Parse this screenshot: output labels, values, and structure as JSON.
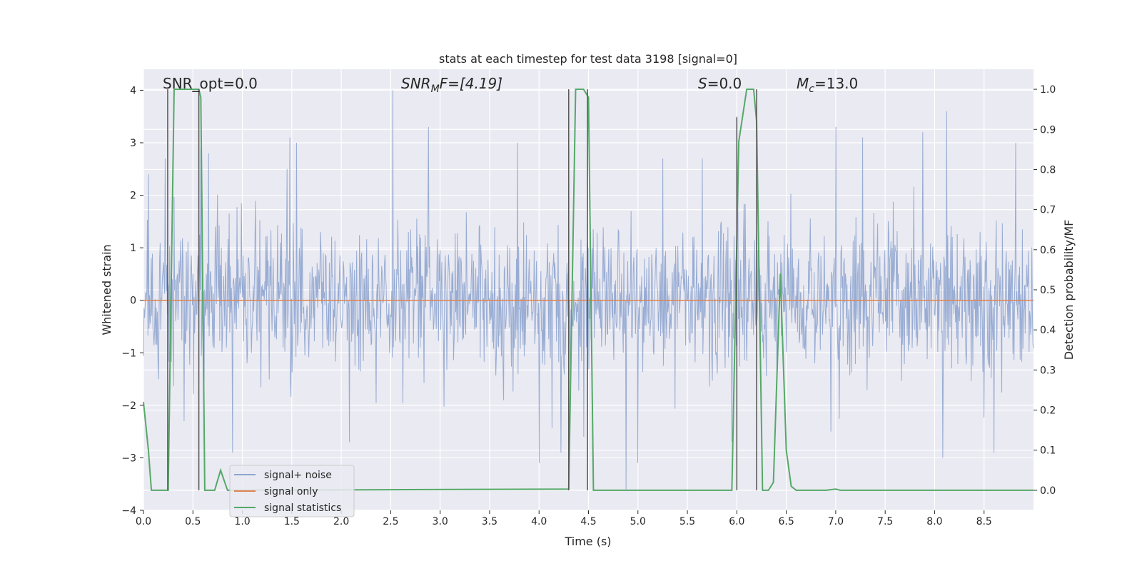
{
  "chart_data": {
    "type": "line",
    "title": "stats at each timestep for test data 3198 [signal=0]",
    "xlabel": "Time (s)",
    "ylabel": "Whitened strain",
    "y2label": "Detection probability/MF",
    "xlim": [
      0,
      9.0
    ],
    "ylim": [
      -4,
      4.4
    ],
    "y2lim": [
      -0.05,
      1.05
    ],
    "xticks": [
      "0.0",
      "0.5",
      "1.0",
      "1.5",
      "2.0",
      "2.5",
      "3.0",
      "3.5",
      "4.0",
      "4.5",
      "5.0",
      "5.5",
      "6.0",
      "6.5",
      "7.0",
      "7.5",
      "8.0",
      "8.5"
    ],
    "yticks": [
      "4",
      "3",
      "2",
      "1",
      "0",
      "−1",
      "−2",
      "−3",
      "−4"
    ],
    "y2ticks": [
      "1.0",
      "0.9",
      "0.8",
      "0.7",
      "0.6",
      "0.5",
      "0.4",
      "0.3",
      "0.2",
      "0.1",
      "0.0"
    ],
    "grid": true,
    "legend_position": "lower-left",
    "annotations": {
      "snr_opt": "SNR_opt=0.0",
      "snr_mf_main": "SNR",
      "snr_mf_sub": "M",
      "snr_mf_rest": "F=[4.19]",
      "s_main": "S",
      "s_rest": "=0.0",
      "mc_main": "M",
      "mc_sub": "c",
      "mc_rest": "=13.0"
    },
    "series": [
      {
        "name": "signal+ noise",
        "color": "#8fa5cf",
        "kind": "noise",
        "sigma": 0.72,
        "peaks": [
          {
            "x": 0.05,
            "y": 2.4
          },
          {
            "x": 0.22,
            "y": 2.7
          },
          {
            "x": 0.58,
            "y": 2.9
          },
          {
            "x": 0.66,
            "y": 2.8
          },
          {
            "x": 1.45,
            "y": 2.5
          },
          {
            "x": 1.48,
            "y": 3.1
          },
          {
            "x": 1.55,
            "y": 3.0
          },
          {
            "x": 2.52,
            "y": 4.0
          },
          {
            "x": 2.88,
            "y": 3.3
          },
          {
            "x": 3.78,
            "y": 3.0
          },
          {
            "x": 4.22,
            "y": 3.4
          },
          {
            "x": 4.45,
            "y": 2.8
          },
          {
            "x": 5.25,
            "y": 2.7
          },
          {
            "x": 5.65,
            "y": 2.7
          },
          {
            "x": 6.0,
            "y": 3.5
          },
          {
            "x": 7.0,
            "y": 3.3
          },
          {
            "x": 7.27,
            "y": 3.1
          },
          {
            "x": 7.88,
            "y": 3.2
          },
          {
            "x": 8.12,
            "y": 3.6
          },
          {
            "x": 8.82,
            "y": 3.0
          },
          {
            "x": 0.9,
            "y": -2.9
          },
          {
            "x": 2.08,
            "y": -2.7
          },
          {
            "x": 4.0,
            "y": -3.1
          },
          {
            "x": 4.22,
            "y": -2.9
          },
          {
            "x": 4.45,
            "y": -2.6
          },
          {
            "x": 4.88,
            "y": -3.6
          },
          {
            "x": 5.0,
            "y": -3.1
          },
          {
            "x": 5.95,
            "y": -2.7
          },
          {
            "x": 8.08,
            "y": -3.0
          },
          {
            "x": 8.6,
            "y": -2.9
          },
          {
            "x": 6.95,
            "y": -2.5
          },
          {
            "x": 0.41,
            "y": -2.3
          }
        ]
      },
      {
        "name": "signal only",
        "color": "#dd8452",
        "kind": "flat",
        "y": 0
      },
      {
        "name": "signal statistics",
        "color": "#55a868",
        "kind": "line",
        "axis": "right",
        "points": [
          [
            0.0,
            0.22
          ],
          [
            0.05,
            0.1
          ],
          [
            0.08,
            0.0
          ],
          [
            0.25,
            0.0
          ],
          [
            0.31,
            1.0
          ],
          [
            0.36,
            1.0
          ],
          [
            0.56,
            1.0
          ],
          [
            0.58,
            0.98
          ],
          [
            0.62,
            0.0
          ],
          [
            0.72,
            0.0
          ],
          [
            0.78,
            0.05
          ],
          [
            0.85,
            0.0
          ],
          [
            4.3,
            0.003
          ],
          [
            4.37,
            1.0
          ],
          [
            4.45,
            1.0
          ],
          [
            4.5,
            0.98
          ],
          [
            4.55,
            0.0
          ],
          [
            5.95,
            0.0
          ],
          [
            6.02,
            0.87
          ],
          [
            6.1,
            1.0
          ],
          [
            6.17,
            1.0
          ],
          [
            6.2,
            0.92
          ],
          [
            6.26,
            0.0
          ],
          [
            6.32,
            0.0
          ],
          [
            6.37,
            0.02
          ],
          [
            6.44,
            0.54
          ],
          [
            6.5,
            0.1
          ],
          [
            6.55,
            0.01
          ],
          [
            6.6,
            0.0
          ],
          [
            6.9,
            0.0
          ],
          [
            7.0,
            0.003
          ],
          [
            7.05,
            0.0
          ],
          [
            9.0,
            0.0
          ]
        ]
      }
    ],
    "vlines": [
      {
        "x": 0.245,
        "y2_from": 0.0,
        "y2_to": 1.0
      },
      {
        "x": 0.56,
        "y2_from": 0.0,
        "y2_to": 1.0
      },
      {
        "x": 4.3,
        "y2_from": 0.0,
        "y2_to": 1.0
      },
      {
        "x": 4.49,
        "y2_from": 0.0,
        "y2_to": 1.0
      },
      {
        "x": 6.0,
        "y2_from": 0.0,
        "y2_to": 0.93
      },
      {
        "x": 6.2,
        "y2_from": 0.0,
        "y2_to": 1.0
      }
    ]
  }
}
